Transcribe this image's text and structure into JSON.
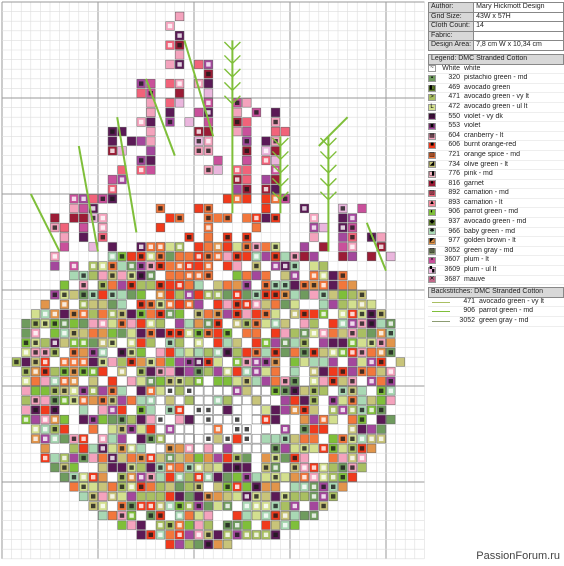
{
  "design_info": [
    {
      "key": "Author:",
      "value": "Mary Hickmott Design"
    },
    {
      "key": "Grid Size:",
      "value": "43W x 57H"
    },
    {
      "key": "Cloth Count:",
      "value": "14"
    },
    {
      "key": "Fabric:",
      "value": ""
    },
    {
      "key": "Design Area:",
      "value": "7,8 cm W  x  10,34 cm"
    }
  ],
  "legend_title": "Legend: DMC Stranded Cotton",
  "legend": [
    {
      "code": "White",
      "name": "white",
      "color": "#ffffff"
    },
    {
      "code": "320",
      "name": "pistachio green - md",
      "color": "#6f9b5e"
    },
    {
      "code": "469",
      "name": "avocado green",
      "color": "#5f7d2a"
    },
    {
      "code": "471",
      "name": "avocado green - vy lt",
      "color": "#a9bf62"
    },
    {
      "code": "472",
      "name": "avocado green - ul lt",
      "color": "#d3df8f"
    },
    {
      "code": "550",
      "name": "violet - vy dk",
      "color": "#5b1a56"
    },
    {
      "code": "553",
      "name": "violet",
      "color": "#a3479c"
    },
    {
      "code": "604",
      "name": "cranberry - lt",
      "color": "#f4a3bd"
    },
    {
      "code": "606",
      "name": "burnt orange-red",
      "color": "#f03a1c"
    },
    {
      "code": "721",
      "name": "orange spice - md",
      "color": "#f2773c"
    },
    {
      "code": "734",
      "name": "olive green - lt",
      "color": "#c8c47a"
    },
    {
      "code": "776",
      "name": "pink - md",
      "color": "#f6b7c4"
    },
    {
      "code": "816",
      "name": "garnet",
      "color": "#9b1c36"
    },
    {
      "code": "892",
      "name": "carnation - md",
      "color": "#f1637a"
    },
    {
      "code": "893",
      "name": "carnation - lt",
      "color": "#f5889a"
    },
    {
      "code": "906",
      "name": "parrot green - md",
      "color": "#7fbf3a"
    },
    {
      "code": "937",
      "name": "avocado green - md",
      "color": "#5f7a2e"
    },
    {
      "code": "966",
      "name": "baby green - md",
      "color": "#a9d8b4"
    },
    {
      "code": "977",
      "name": "golden brown - lt",
      "color": "#e2954b"
    },
    {
      "code": "3052",
      "name": "green gray - md",
      "color": "#8c9c72"
    },
    {
      "code": "3607",
      "name": "plum - lt",
      "color": "#c9509b"
    },
    {
      "code": "3609",
      "name": "plum - ul lt",
      "color": "#eab6dd"
    },
    {
      "code": "3687",
      "name": "mauve",
      "color": "#c26a8a"
    }
  ],
  "backstitch_title": "Backstitches: DMC Stranded Cotton",
  "backstitches": [
    {
      "code": "471",
      "name": "avocado green - vy lt",
      "color": "#a9bf62"
    },
    {
      "code": "906",
      "name": "parrot green - md",
      "color": "#7fbf3a"
    },
    {
      "code": "3052",
      "name": "green gray - md",
      "color": "#8c9c72"
    }
  ],
  "watermark": "PassionForum.ru"
}
